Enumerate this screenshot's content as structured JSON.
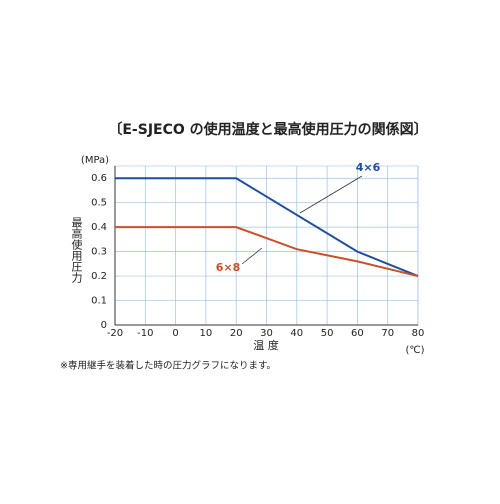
{
  "chart_data": {
    "type": "line",
    "title": "〔E-SJECO の使用温度と最高使用圧力の関係図〕",
    "y_unit": "(MPa)",
    "y_label": "最高使用圧力",
    "x_label": "温 度",
    "x_unit": "(℃)",
    "note": "※専用継手を装着した時の圧力グラフになります。",
    "xlim": [
      -20,
      80
    ],
    "xticks": [
      -20,
      -10,
      0,
      10,
      20,
      30,
      40,
      50,
      60,
      70,
      80
    ],
    "ylim": [
      0,
      0.65
    ],
    "yticks": [
      0,
      0.1,
      0.2,
      0.3,
      0.4,
      0.5,
      0.6
    ],
    "grid": true,
    "series": [
      {
        "name": "4×6",
        "color": "#1f4e9c",
        "x": [
          -20,
          20,
          60,
          80
        ],
        "values": [
          0.6,
          0.6,
          0.3,
          0.2
        ]
      },
      {
        "name": "6×8",
        "color": "#c8502a",
        "x": [
          -20,
          20,
          40,
          60,
          80
        ],
        "values": [
          0.4,
          0.4,
          0.31,
          0.26,
          0.2
        ]
      }
    ]
  }
}
